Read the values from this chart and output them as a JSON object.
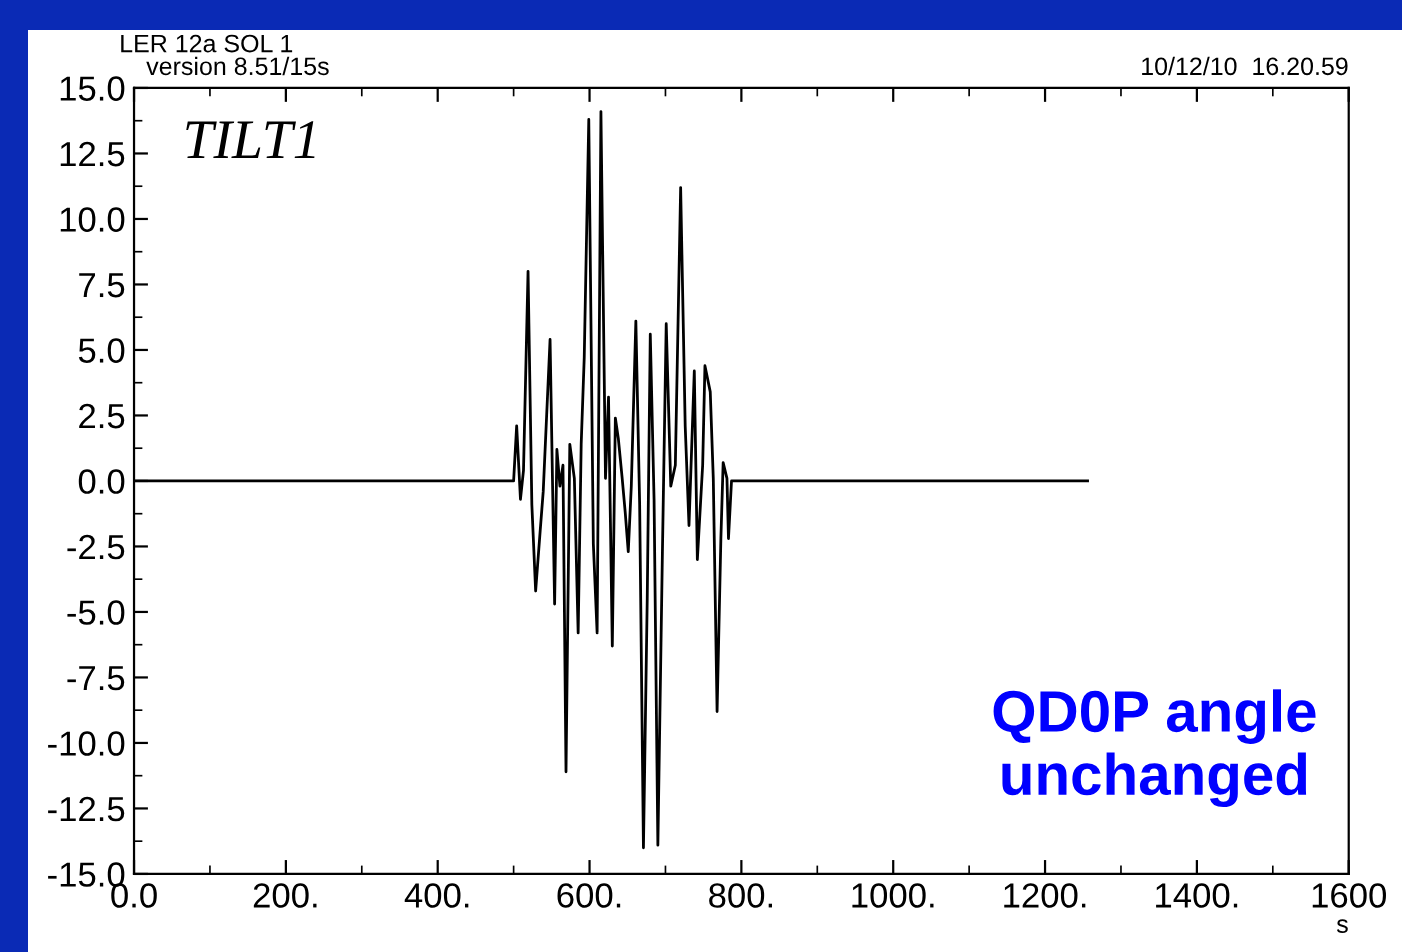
{
  "chart_data": {
    "type": "line",
    "title": "LER 12a SOL 1",
    "subtitle": "version 8.51/15s",
    "xlabel": "s",
    "annotations": [
      "10/12/10  16.20.59",
      "TILT1",
      "QD0P angle\nunchanged"
    ],
    "series": [
      {
        "color": "#000000",
        "x": [
          0,
          500,
          504,
          509,
          513,
          519,
          524,
          529,
          535,
          539,
          548,
          554,
          557,
          561,
          565,
          569,
          574,
          580,
          585,
          589,
          593,
          599,
          605,
          610,
          615,
          621,
          625,
          630,
          634,
          638,
          643,
          647,
          651,
          655,
          661,
          666,
          671,
          676,
          680,
          685,
          690,
          696,
          701,
          707,
          713,
          720,
          726,
          731,
          738,
          742,
          749,
          752,
          759,
          763,
          768,
          773,
          776,
          781,
          783,
          787,
          789,
          1256
        ],
        "values": [
          0,
          0,
          2.1,
          -0.7,
          0.4,
          8.0,
          -0.9,
          -4.2,
          -1.9,
          -0.4,
          5.4,
          -4.7,
          1.2,
          -0.2,
          0.6,
          -11.1,
          1.4,
          0.1,
          -5.8,
          1.4,
          4.7,
          13.8,
          -2.4,
          -5.8,
          14.1,
          0.1,
          3.2,
          -6.3,
          2.4,
          1.6,
          0.1,
          -1.2,
          -2.7,
          -0.2,
          6.1,
          -0.9,
          -14.0,
          -4.5,
          5.6,
          -0.7,
          -13.9,
          -2.7,
          6.0,
          -0.2,
          0.6,
          11.2,
          2.1,
          -1.7,
          4.2,
          -3.0,
          0.6,
          4.4,
          3.4,
          0.1,
          -8.8,
          -2.2,
          0.7,
          0.1,
          -2.2,
          0,
          0,
          0
        ]
      }
    ],
    "xlim": [
      0,
      1600
    ],
    "ylim": [
      -15,
      15
    ],
    "xticks": [
      {
        "value": 0,
        "label": "0.0"
      },
      {
        "value": 200,
        "label": "200."
      },
      {
        "value": 400,
        "label": "400."
      },
      {
        "value": 600,
        "label": "600."
      },
      {
        "value": 800,
        "label": "800."
      },
      {
        "value": 1000,
        "label": "1000."
      },
      {
        "value": 1200,
        "label": "1200."
      },
      {
        "value": 1400,
        "label": "1400."
      },
      1600
    ],
    "yticks": [
      {
        "value": -15,
        "label": "-15.0"
      },
      {
        "value": -12.5,
        "label": "-12.5"
      },
      {
        "value": -10,
        "label": "-10.0"
      },
      {
        "value": -7.5,
        "label": "-7.5"
      },
      {
        "value": -5,
        "label": "-5.0"
      },
      {
        "value": -2.5,
        "label": "-2.5"
      },
      {
        "value": 0,
        "label": "0.0"
      },
      {
        "value": 2.5,
        "label": "2.5"
      },
      {
        "value": 5,
        "label": "5.0"
      },
      {
        "value": 7.5,
        "label": "7.5"
      },
      {
        "value": 10,
        "label": "10.0"
      },
      {
        "value": 12.5,
        "label": "12.5"
      },
      {
        "value": 15,
        "label": "15.0"
      }
    ],
    "grid": false,
    "legend": false
  }
}
